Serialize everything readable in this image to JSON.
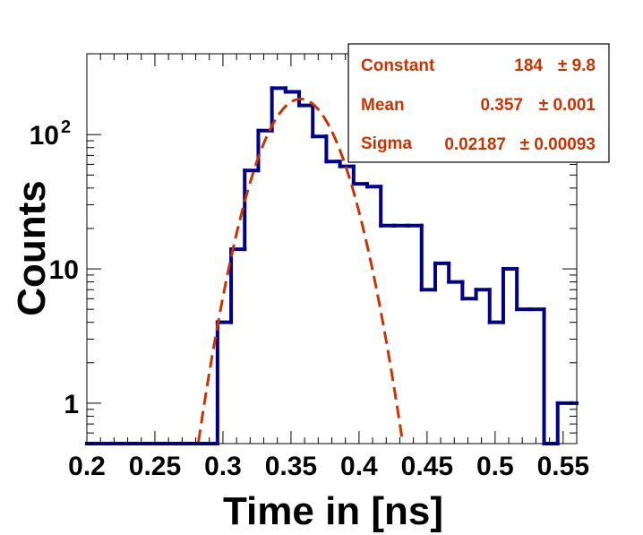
{
  "chart_data": {
    "type": "histogram",
    "title": "",
    "xlabel": "Time in [ns]",
    "ylabel": "Counts",
    "xlim": [
      0.2,
      0.56
    ],
    "ylim": [
      0.5,
      400
    ],
    "y_scale": "log",
    "grid": false,
    "x_ticks": [
      "0.2",
      "0.25",
      "0.3",
      "0.35",
      "0.4",
      "0.45",
      "0.5",
      "0.55"
    ],
    "y_ticks": [
      {
        "value": 1,
        "base": "1",
        "exp": ""
      },
      {
        "value": 10,
        "base": "10",
        "exp": ""
      },
      {
        "value": 100,
        "base": "10",
        "exp": "2"
      }
    ],
    "series": [
      {
        "color": "#00008b",
        "bin_width": 0.01,
        "bins": [
          {
            "x0": 0.2,
            "x1": 0.296,
            "count": 0
          },
          {
            "x0": 0.296,
            "x1": 0.306,
            "count": 4
          },
          {
            "x0": 0.306,
            "x1": 0.316,
            "count": 14
          },
          {
            "x0": 0.316,
            "x1": 0.326,
            "count": 54
          },
          {
            "x0": 0.326,
            "x1": 0.336,
            "count": 107
          },
          {
            "x0": 0.336,
            "x1": 0.346,
            "count": 222
          },
          {
            "x0": 0.346,
            "x1": 0.356,
            "count": 208
          },
          {
            "x0": 0.356,
            "x1": 0.366,
            "count": 165
          },
          {
            "x0": 0.366,
            "x1": 0.376,
            "count": 97
          },
          {
            "x0": 0.376,
            "x1": 0.386,
            "count": 63
          },
          {
            "x0": 0.386,
            "x1": 0.396,
            "count": 58
          },
          {
            "x0": 0.396,
            "x1": 0.406,
            "count": 43
          },
          {
            "x0": 0.406,
            "x1": 0.416,
            "count": 41
          },
          {
            "x0": 0.416,
            "x1": 0.426,
            "count": 21
          },
          {
            "x0": 0.426,
            "x1": 0.436,
            "count": 21
          },
          {
            "x0": 0.436,
            "x1": 0.446,
            "count": 21
          },
          {
            "x0": 0.446,
            "x1": 0.456,
            "count": 7
          },
          {
            "x0": 0.456,
            "x1": 0.466,
            "count": 11
          },
          {
            "x0": 0.466,
            "x1": 0.476,
            "count": 8
          },
          {
            "x0": 0.476,
            "x1": 0.486,
            "count": 6
          },
          {
            "x0": 0.486,
            "x1": 0.496,
            "count": 7
          },
          {
            "x0": 0.496,
            "x1": 0.506,
            "count": 4
          },
          {
            "x0": 0.506,
            "x1": 0.516,
            "count": 10
          },
          {
            "x0": 0.516,
            "x1": 0.526,
            "count": 5
          },
          {
            "x0": 0.526,
            "x1": 0.536,
            "count": 5
          },
          {
            "x0": 0.536,
            "x1": 0.546,
            "count": 0
          },
          {
            "x0": 0.546,
            "x1": 0.556,
            "count": 1
          },
          {
            "x0": 0.556,
            "x1": 0.56,
            "count": 1
          }
        ]
      }
    ],
    "fit": {
      "function": "gaussian",
      "color": "#cc3300",
      "style": "dashed",
      "constant": 184,
      "mean": 0.357,
      "sigma": 0.02187
    },
    "stats_box": {
      "placement": "top-right",
      "color": "#cc3300",
      "rows": [
        {
          "name": "Constant",
          "value": "184",
          "error": "± 9.8"
        },
        {
          "name": "Mean",
          "value": "0.357",
          "error": "± 0.001"
        },
        {
          "name": "Sigma",
          "value": "0.02187",
          "error": "± 0.00093"
        }
      ]
    }
  }
}
